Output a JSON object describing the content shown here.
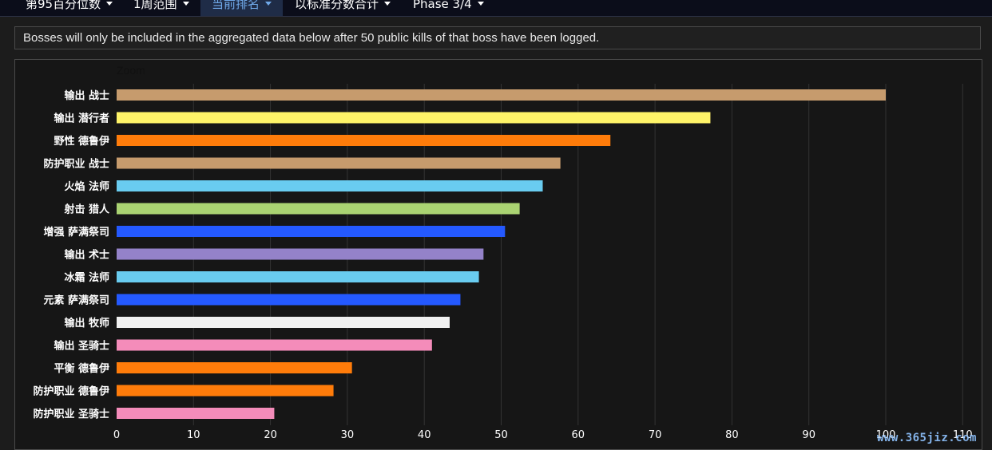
{
  "toolbar": {
    "items": [
      {
        "label": "第95百分位数"
      },
      {
        "label": "1周范围"
      },
      {
        "label": "当前排名"
      },
      {
        "label": "以标准分数合计"
      },
      {
        "label": "Phase 3/4"
      }
    ],
    "active_index": 2
  },
  "notice": {
    "text": "Bosses will only be included in the aggregated data below after 50 public kills of that boss have been logged."
  },
  "zoom_label": "Zoom",
  "watermark": "www.365jiz.com",
  "colors": {
    "background": "#161616",
    "gridline": "#333333",
    "axis_text": "#ffffff",
    "active_tab_text": "#6fa8e8",
    "active_tab_bg": "#1f2c47"
  },
  "chart_data": {
    "type": "bar",
    "orientation": "horizontal",
    "categories": [
      "输出 战士",
      "输出 潜行者",
      "野性 德鲁伊",
      "防护职业 战士",
      "火焰 法师",
      "射击 猎人",
      "增强 萨满祭司",
      "输出 术士",
      "冰霜 法师",
      "元素 萨满祭司",
      "输出 牧师",
      "输出 圣骑士",
      "平衡 德鲁伊",
      "防护职业 德鲁伊",
      "防护职业 圣骑士"
    ],
    "values": [
      100,
      77.2,
      64.2,
      57.7,
      55.4,
      52.4,
      50.5,
      47.7,
      47.1,
      44.7,
      43.3,
      41.0,
      30.6,
      28.2,
      20.5
    ],
    "bar_colors": [
      "#c69b6d",
      "#fff468",
      "#ff7c0a",
      "#c69b6d",
      "#69ccf0",
      "#aad372",
      "#2459ff",
      "#9482c9",
      "#69ccf0",
      "#2459ff",
      "#f0f0f0",
      "#f48cba",
      "#ff7c0a",
      "#ff7c0a",
      "#f48cba"
    ],
    "xlim": [
      0,
      110
    ],
    "xticks": [
      0,
      10,
      20,
      30,
      40,
      50,
      60,
      70,
      80,
      90,
      100,
      110
    ],
    "grid": true
  }
}
